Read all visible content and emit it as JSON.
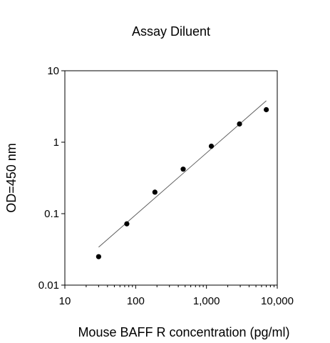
{
  "chart_data": {
    "type": "scatter",
    "title": "Assay Diluent",
    "xlabel": "Mouse BAFF R concentration (pg/ml)",
    "ylabel": "OD=450 nm",
    "x_scale": "log",
    "y_scale": "log",
    "xlim": [
      10,
      10000
    ],
    "ylim": [
      0.01,
      10
    ],
    "x_ticks": [
      10,
      100,
      1000,
      10000
    ],
    "x_tick_labels": [
      "10",
      "100",
      "1,000",
      "10,000"
    ],
    "y_ticks": [
      0.01,
      0.1,
      1,
      10
    ],
    "y_tick_labels": [
      "0.01",
      "0.1",
      "1",
      "10"
    ],
    "grid": false,
    "series": [
      {
        "x": [
          30,
          75,
          187,
          469,
          1172,
          2930,
          7000
        ],
        "y": [
          0.025,
          0.072,
          0.2,
          0.42,
          0.88,
          1.8,
          2.85
        ],
        "color": "#000000",
        "marker": "circle"
      }
    ],
    "fit_line": {
      "x": [
        30,
        7000
      ],
      "y": [
        0.034,
        3.8
      ],
      "color": "#555555"
    }
  }
}
